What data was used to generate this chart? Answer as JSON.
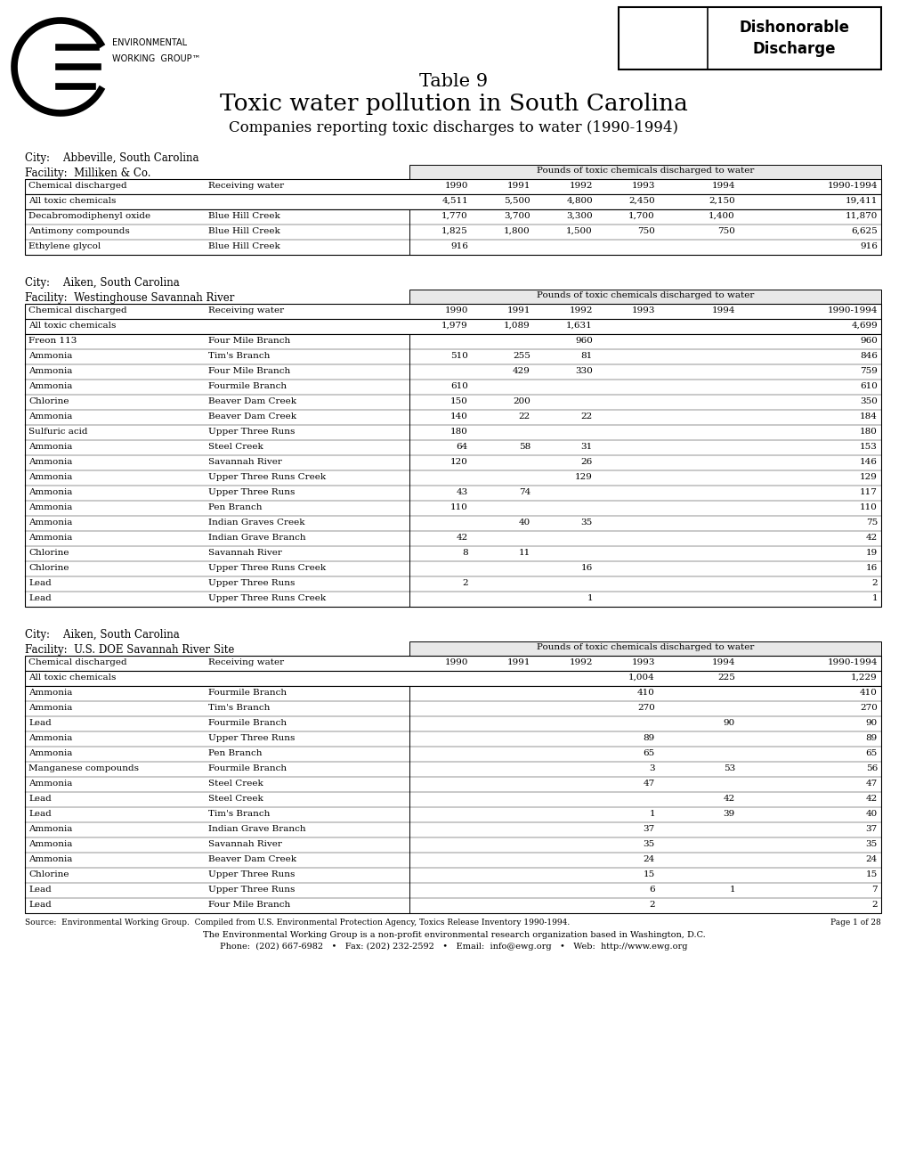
{
  "title_line1": "Table 9",
  "title_line2": "Toxic water pollution in South Carolina",
  "title_line3": "Companies reporting toxic discharges to water (1990-1994)",
  "col_headers": [
    "Chemical discharged",
    "Receiving water",
    "1990",
    "1991",
    "1992",
    "1993",
    "1994",
    "1990-1994"
  ],
  "pounds_header": "Pounds of toxic chemicals discharged to water",
  "table1": {
    "city": "City:    Abbeville, South Carolina",
    "facility": "Facility:  Milliken & Co.",
    "summary_row": [
      "All toxic chemicals",
      "",
      "4,511",
      "5,500",
      "4,800",
      "2,450",
      "2,150",
      "19,411"
    ],
    "rows": [
      [
        "Decabromodiphenyl oxide",
        "Blue Hill Creek",
        "1,770",
        "3,700",
        "3,300",
        "1,700",
        "1,400",
        "11,870"
      ],
      [
        "Antimony compounds",
        "Blue Hill Creek",
        "1,825",
        "1,800",
        "1,500",
        "750",
        "750",
        "6,625"
      ],
      [
        "Ethylene glycol",
        "Blue Hill Creek",
        "916",
        "",
        "",
        "",
        "",
        "916"
      ]
    ]
  },
  "table2": {
    "city": "City:    Aiken, South Carolina",
    "facility": "Facility:  Westinghouse Savannah River",
    "summary_row": [
      "All toxic chemicals",
      "",
      "1,979",
      "1,089",
      "1,631",
      "",
      "",
      "4,699"
    ],
    "rows": [
      [
        "Freon 113",
        "Four Mile Branch",
        "",
        "",
        "960",
        "",
        "",
        "960"
      ],
      [
        "Ammonia",
        "Tim's Branch",
        "510",
        "255",
        "81",
        "",
        "",
        "846"
      ],
      [
        "Ammonia",
        "Four Mile Branch",
        "",
        "429",
        "330",
        "",
        "",
        "759"
      ],
      [
        "Ammonia",
        "Fourmile Branch",
        "610",
        "",
        "",
        "",
        "",
        "610"
      ],
      [
        "Chlorine",
        "Beaver Dam Creek",
        "150",
        "200",
        "",
        "",
        "",
        "350"
      ],
      [
        "Ammonia",
        "Beaver Dam Creek",
        "140",
        "22",
        "22",
        "",
        "",
        "184"
      ],
      [
        "Sulfuric acid",
        "Upper Three Runs",
        "180",
        "",
        "",
        "",
        "",
        "180"
      ],
      [
        "Ammonia",
        "Steel Creek",
        "64",
        "58",
        "31",
        "",
        "",
        "153"
      ],
      [
        "Ammonia",
        "Savannah River",
        "120",
        "",
        "26",
        "",
        "",
        "146"
      ],
      [
        "Ammonia",
        "Upper Three Runs Creek",
        "",
        "",
        "129",
        "",
        "",
        "129"
      ],
      [
        "Ammonia",
        "Upper Three Runs",
        "43",
        "74",
        "",
        "",
        "",
        "117"
      ],
      [
        "Ammonia",
        "Pen Branch",
        "110",
        "",
        "",
        "",
        "",
        "110"
      ],
      [
        "Ammonia",
        "Indian Graves Creek",
        "",
        "40",
        "35",
        "",
        "",
        "75"
      ],
      [
        "Ammonia",
        "Indian Grave Branch",
        "42",
        "",
        "",
        "",
        "",
        "42"
      ],
      [
        "Chlorine",
        "Savannah River",
        "8",
        "11",
        "",
        "",
        "",
        "19"
      ],
      [
        "Chlorine",
        "Upper Three Runs Creek",
        "",
        "",
        "16",
        "",
        "",
        "16"
      ],
      [
        "Lead",
        "Upper Three Runs",
        "2",
        "",
        "",
        "",
        "",
        "2"
      ],
      [
        "Lead",
        "Upper Three Runs Creek",
        "",
        "",
        "1",
        "",
        "",
        "1"
      ]
    ]
  },
  "table3": {
    "city": "City:    Aiken, South Carolina",
    "facility": "Facility:  U.S. DOE Savannah River Site",
    "summary_row": [
      "All toxic chemicals",
      "",
      "",
      "",
      "",
      "1,004",
      "225",
      "1,229"
    ],
    "rows": [
      [
        "Ammonia",
        "Fourmile Branch",
        "",
        "",
        "",
        "410",
        "",
        "410"
      ],
      [
        "Ammonia",
        "Tim's Branch",
        "",
        "",
        "",
        "270",
        "",
        "270"
      ],
      [
        "Lead",
        "Fourmile Branch",
        "",
        "",
        "",
        "",
        "90",
        "90"
      ],
      [
        "Ammonia",
        "Upper Three Runs",
        "",
        "",
        "",
        "89",
        "",
        "89"
      ],
      [
        "Ammonia",
        "Pen Branch",
        "",
        "",
        "",
        "65",
        "",
        "65"
      ],
      [
        "Manganese compounds",
        "Fourmile Branch",
        "",
        "",
        "",
        "3",
        "53",
        "56"
      ],
      [
        "Ammonia",
        "Steel Creek",
        "",
        "",
        "",
        "47",
        "",
        "47"
      ],
      [
        "Lead",
        "Steel Creek",
        "",
        "",
        "",
        "",
        "42",
        "42"
      ],
      [
        "Lead",
        "Tim's Branch",
        "",
        "",
        "",
        "1",
        "39",
        "40"
      ],
      [
        "Ammonia",
        "Indian Grave Branch",
        "",
        "",
        "",
        "37",
        "",
        "37"
      ],
      [
        "Ammonia",
        "Savannah River",
        "",
        "",
        "",
        "35",
        "",
        "35"
      ],
      [
        "Ammonia",
        "Beaver Dam Creek",
        "",
        "",
        "",
        "24",
        "",
        "24"
      ],
      [
        "Chlorine",
        "Upper Three Runs",
        "",
        "",
        "",
        "15",
        "",
        "15"
      ],
      [
        "Lead",
        "Upper Three Runs",
        "",
        "",
        "",
        "6",
        "1",
        "7"
      ],
      [
        "Lead",
        "Four Mile Branch",
        "",
        "",
        "",
        "2",
        "",
        "2"
      ]
    ]
  },
  "footer1": "Source:  Environmental Working Group.  Compiled from U.S. Environmental Protection Agency, Toxics Release Inventory 1990-1994.",
  "footer2": "Page 1 of 28",
  "footer3": "The Environmental Working Group is a non-profit environmental research organization based in Washington, D.C.",
  "footer4": "Phone:  (202) 667-6982   •   Fax: (202) 232-2592   •   Email:  info@ewg.org   •   Web:  http://www.ewg.org",
  "bg_color": "#ffffff",
  "text_color": "#000000"
}
